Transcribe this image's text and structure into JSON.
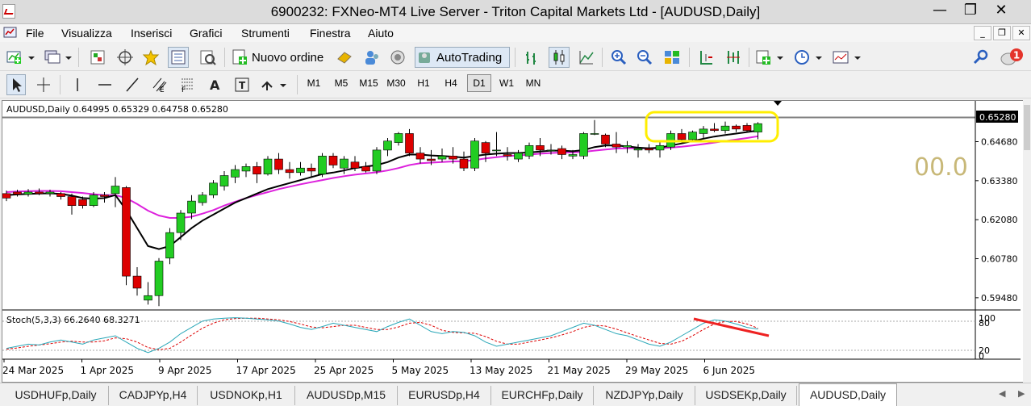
{
  "window": {
    "title": "6900232: FXNeo-MT4 Live Server - Triton Capital Markets Ltd - [AUDUSD,Daily]",
    "buttons": {
      "minimize": "—",
      "restore": "❐",
      "close": "✕"
    }
  },
  "menu": [
    "File",
    "Visualizza",
    "Inserisci",
    "Grafici",
    "Strumenti",
    "Finestra",
    "Aiuto"
  ],
  "mdi_buttons": {
    "minimize": "_",
    "restore": "❐",
    "close": "✕"
  },
  "toolbar": {
    "new_order_label": "Nuovo ordine",
    "autotrading_label": "AutoTrading",
    "notification_count": "1"
  },
  "timeframes": {
    "items": [
      "M1",
      "M5",
      "M15",
      "M30",
      "H1",
      "H4",
      "D1",
      "W1",
      "MN"
    ],
    "active": "D1"
  },
  "chart": {
    "symbol_header": "AUDUSD,Daily  0.64995 0.65329 0.64758 0.65280",
    "current_price": "0.65280",
    "price_labels": [
      "0.64680",
      "0.63380",
      "0.62080",
      "0.60780",
      "0.59480"
    ],
    "overlay_value": "00.0",
    "stoch_header": "Stoch(5,3,3) 66.2640 68.3271",
    "stoch_levels": [
      "100",
      "80",
      "20",
      "0"
    ],
    "date_labels": [
      "24 Mar 2025",
      "1 Apr 2025",
      "9 Apr 2025",
      "17 Apr 2025",
      "25 Apr 2025",
      "5 May 2025",
      "13 May 2025",
      "21 May 2025",
      "29 May 2025",
      "6 Jun 2025"
    ],
    "colors": {
      "bull": "#22cc22",
      "bear": "#dd0000",
      "ma_fast": "#000000",
      "ma_slow": "#dd22dd",
      "stoch_main": "#2aa7b8",
      "stoch_signal": "#dd0000",
      "highlight": "#ffee00",
      "annotation": "#ee2222",
      "overlay_text": "#c8b878"
    }
  },
  "chart_data": {
    "type": "candlestick",
    "symbol": "AUDUSD",
    "timeframe": "Daily",
    "candles": [
      {
        "o": 0.6295,
        "h": 0.6305,
        "l": 0.627,
        "c": 0.628
      },
      {
        "o": 0.63,
        "h": 0.6308,
        "l": 0.6285,
        "c": 0.6293
      },
      {
        "o": 0.6293,
        "h": 0.631,
        "l": 0.6285,
        "c": 0.63
      },
      {
        "o": 0.63,
        "h": 0.6312,
        "l": 0.629,
        "c": 0.6295
      },
      {
        "o": 0.6295,
        "h": 0.6308,
        "l": 0.6285,
        "c": 0.63
      },
      {
        "o": 0.6295,
        "h": 0.63,
        "l": 0.6275,
        "c": 0.6285
      },
      {
        "o": 0.6285,
        "h": 0.6295,
        "l": 0.6225,
        "c": 0.6255
      },
      {
        "o": 0.6275,
        "h": 0.6285,
        "l": 0.6245,
        "c": 0.6255
      },
      {
        "o": 0.6255,
        "h": 0.63,
        "l": 0.625,
        "c": 0.629
      },
      {
        "o": 0.629,
        "h": 0.63,
        "l": 0.6265,
        "c": 0.6285
      },
      {
        "o": 0.6295,
        "h": 0.635,
        "l": 0.625,
        "c": 0.632
      },
      {
        "o": 0.6315,
        "h": 0.632,
        "l": 0.599,
        "c": 0.602
      },
      {
        "o": 0.602,
        "h": 0.605,
        "l": 0.5955,
        "c": 0.598
      },
      {
        "o": 0.594,
        "h": 0.6,
        "l": 0.5925,
        "c": 0.5955
      },
      {
        "o": 0.5955,
        "h": 0.608,
        "l": 0.592,
        "c": 0.607
      },
      {
        "o": 0.608,
        "h": 0.618,
        "l": 0.606,
        "c": 0.6165
      },
      {
        "o": 0.6165,
        "h": 0.624,
        "l": 0.614,
        "c": 0.623
      },
      {
        "o": 0.623,
        "h": 0.629,
        "l": 0.621,
        "c": 0.627
      },
      {
        "o": 0.6265,
        "h": 0.63,
        "l": 0.6255,
        "c": 0.629
      },
      {
        "o": 0.629,
        "h": 0.634,
        "l": 0.628,
        "c": 0.633
      },
      {
        "o": 0.632,
        "h": 0.637,
        "l": 0.6305,
        "c": 0.6355
      },
      {
        "o": 0.635,
        "h": 0.639,
        "l": 0.633,
        "c": 0.6375
      },
      {
        "o": 0.637,
        "h": 0.6395,
        "l": 0.635,
        "c": 0.6385
      },
      {
        "o": 0.6385,
        "h": 0.64,
        "l": 0.633,
        "c": 0.636
      },
      {
        "o": 0.636,
        "h": 0.642,
        "l": 0.6355,
        "c": 0.641
      },
      {
        "o": 0.641,
        "h": 0.643,
        "l": 0.636,
        "c": 0.6375
      },
      {
        "o": 0.6375,
        "h": 0.64,
        "l": 0.6345,
        "c": 0.6365
      },
      {
        "o": 0.6365,
        "h": 0.64,
        "l": 0.6355,
        "c": 0.638
      },
      {
        "o": 0.638,
        "h": 0.6395,
        "l": 0.635,
        "c": 0.637
      },
      {
        "o": 0.636,
        "h": 0.643,
        "l": 0.635,
        "c": 0.642
      },
      {
        "o": 0.642,
        "h": 0.643,
        "l": 0.638,
        "c": 0.639
      },
      {
        "o": 0.638,
        "h": 0.642,
        "l": 0.636,
        "c": 0.641
      },
      {
        "o": 0.64,
        "h": 0.642,
        "l": 0.637,
        "c": 0.638
      },
      {
        "o": 0.6385,
        "h": 0.64,
        "l": 0.6365,
        "c": 0.637
      },
      {
        "o": 0.637,
        "h": 0.645,
        "l": 0.636,
        "c": 0.644
      },
      {
        "o": 0.644,
        "h": 0.648,
        "l": 0.642,
        "c": 0.647
      },
      {
        "o": 0.6465,
        "h": 0.65,
        "l": 0.6455,
        "c": 0.6495
      },
      {
        "o": 0.6495,
        "h": 0.651,
        "l": 0.642,
        "c": 0.643
      },
      {
        "o": 0.643,
        "h": 0.645,
        "l": 0.6395,
        "c": 0.641
      },
      {
        "o": 0.641,
        "h": 0.644,
        "l": 0.639,
        "c": 0.6405
      },
      {
        "o": 0.641,
        "h": 0.6445,
        "l": 0.64,
        "c": 0.642
      },
      {
        "o": 0.642,
        "h": 0.645,
        "l": 0.6395,
        "c": 0.641
      },
      {
        "o": 0.641,
        "h": 0.6435,
        "l": 0.637,
        "c": 0.638
      },
      {
        "o": 0.638,
        "h": 0.648,
        "l": 0.637,
        "c": 0.647
      },
      {
        "o": 0.6465,
        "h": 0.647,
        "l": 0.64,
        "c": 0.643
      },
      {
        "o": 0.644,
        "h": 0.65,
        "l": 0.642,
        "c": 0.644
      },
      {
        "o": 0.6425,
        "h": 0.645,
        "l": 0.6405,
        "c": 0.642
      },
      {
        "o": 0.641,
        "h": 0.644,
        "l": 0.64,
        "c": 0.643
      },
      {
        "o": 0.642,
        "h": 0.6465,
        "l": 0.641,
        "c": 0.6455
      },
      {
        "o": 0.6455,
        "h": 0.648,
        "l": 0.642,
        "c": 0.644
      },
      {
        "o": 0.644,
        "h": 0.646,
        "l": 0.6425,
        "c": 0.644
      },
      {
        "o": 0.6445,
        "h": 0.6455,
        "l": 0.641,
        "c": 0.6425
      },
      {
        "o": 0.642,
        "h": 0.644,
        "l": 0.641,
        "c": 0.6425
      },
      {
        "o": 0.642,
        "h": 0.65,
        "l": 0.641,
        "c": 0.6495
      },
      {
        "o": 0.6495,
        "h": 0.654,
        "l": 0.649,
        "c": 0.6495
      },
      {
        "o": 0.649,
        "h": 0.6495,
        "l": 0.645,
        "c": 0.646
      },
      {
        "o": 0.646,
        "h": 0.65,
        "l": 0.643,
        "c": 0.645
      },
      {
        "o": 0.645,
        "h": 0.647,
        "l": 0.643,
        "c": 0.6455
      },
      {
        "o": 0.644,
        "h": 0.646,
        "l": 0.6415,
        "c": 0.6445
      },
      {
        "o": 0.6445,
        "h": 0.646,
        "l": 0.643,
        "c": 0.644
      },
      {
        "o": 0.644,
        "h": 0.647,
        "l": 0.6415,
        "c": 0.6455
      },
      {
        "o": 0.645,
        "h": 0.6505,
        "l": 0.644,
        "c": 0.6495
      },
      {
        "o": 0.6495,
        "h": 0.651,
        "l": 0.6465,
        "c": 0.6475
      },
      {
        "o": 0.6475,
        "h": 0.6505,
        "l": 0.647,
        "c": 0.65
      },
      {
        "o": 0.6495,
        "h": 0.652,
        "l": 0.648,
        "c": 0.651
      },
      {
        "o": 0.651,
        "h": 0.653,
        "l": 0.65,
        "c": 0.6505
      },
      {
        "o": 0.6505,
        "h": 0.6535,
        "l": 0.6495,
        "c": 0.652
      },
      {
        "o": 0.652,
        "h": 0.6525,
        "l": 0.65,
        "c": 0.651
      },
      {
        "o": 0.6522,
        "h": 0.653,
        "l": 0.65,
        "c": 0.6505
      },
      {
        "o": 0.65,
        "h": 0.6533,
        "l": 0.6476,
        "c": 0.6528
      }
    ],
    "ma_fast": [
      0.629,
      0.6292,
      0.6294,
      0.6295,
      0.6296,
      0.6294,
      0.6288,
      0.628,
      0.6278,
      0.628,
      0.629,
      0.624,
      0.618,
      0.612,
      0.611,
      0.612,
      0.615,
      0.618,
      0.6205,
      0.6225,
      0.6245,
      0.6265,
      0.628,
      0.6295,
      0.631,
      0.632,
      0.633,
      0.634,
      0.635,
      0.636,
      0.6365,
      0.6372,
      0.638,
      0.6385,
      0.639,
      0.64,
      0.6415,
      0.6425,
      0.6425,
      0.6422,
      0.642,
      0.6418,
      0.6415,
      0.642,
      0.6425,
      0.6428,
      0.643,
      0.643,
      0.6432,
      0.6435,
      0.6438,
      0.6438,
      0.6436,
      0.644,
      0.645,
      0.6455,
      0.6455,
      0.6452,
      0.6448,
      0.6446,
      0.6448,
      0.6455,
      0.6462,
      0.647,
      0.6478,
      0.6485,
      0.649,
      0.6495,
      0.65,
      0.6505
    ],
    "ma_slow": [
      0.63,
      0.6302,
      0.6303,
      0.6304,
      0.6304,
      0.6303,
      0.63,
      0.6297,
      0.6293,
      0.629,
      0.629,
      0.628,
      0.626,
      0.6238,
      0.6222,
      0.6214,
      0.6214,
      0.6218,
      0.6228,
      0.624,
      0.6255,
      0.6268,
      0.628,
      0.629,
      0.63,
      0.631,
      0.6318,
      0.6326,
      0.6333,
      0.634,
      0.6347,
      0.6353,
      0.6358,
      0.6362,
      0.6366,
      0.6372,
      0.638,
      0.639,
      0.6396,
      0.6398,
      0.64,
      0.6402,
      0.6403,
      0.6407,
      0.6412,
      0.6416,
      0.642,
      0.6422,
      0.6425,
      0.6428,
      0.643,
      0.6432,
      0.6432,
      0.6434,
      0.6438,
      0.6442,
      0.6445,
      0.6446,
      0.6446,
      0.6446,
      0.6446,
      0.6448,
      0.6451,
      0.6455,
      0.646,
      0.6465,
      0.647,
      0.6475,
      0.648,
      0.6486
    ],
    "stoch_main": [
      20,
      25,
      30,
      28,
      35,
      40,
      35,
      30,
      40,
      45,
      50,
      35,
      20,
      10,
      20,
      35,
      55,
      70,
      85,
      90,
      92,
      93,
      92,
      90,
      88,
      85,
      78,
      70,
      65,
      72,
      80,
      75,
      70,
      65,
      60,
      72,
      82,
      90,
      75,
      60,
      55,
      60,
      58,
      50,
      35,
      25,
      30,
      35,
      40,
      45,
      50,
      60,
      70,
      80,
      75,
      65,
      55,
      50,
      40,
      30,
      25,
      35,
      50,
      65,
      80,
      88,
      85,
      78,
      70,
      66
    ],
    "stoch_signal": [
      18,
      21,
      25,
      28,
      31,
      35,
      37,
      35,
      35,
      38,
      45,
      43,
      35,
      22,
      17,
      20,
      35,
      52,
      68,
      80,
      88,
      91,
      92,
      92,
      90,
      88,
      84,
      78,
      71,
      69,
      72,
      75,
      75,
      70,
      65,
      65,
      71,
      80,
      82,
      75,
      63,
      58,
      57,
      56,
      48,
      37,
      30,
      30,
      35,
      40,
      45,
      52,
      60,
      70,
      75,
      73,
      66,
      57,
      48,
      40,
      32,
      30,
      37,
      50,
      65,
      78,
      84,
      84,
      78,
      68
    ]
  }
}
